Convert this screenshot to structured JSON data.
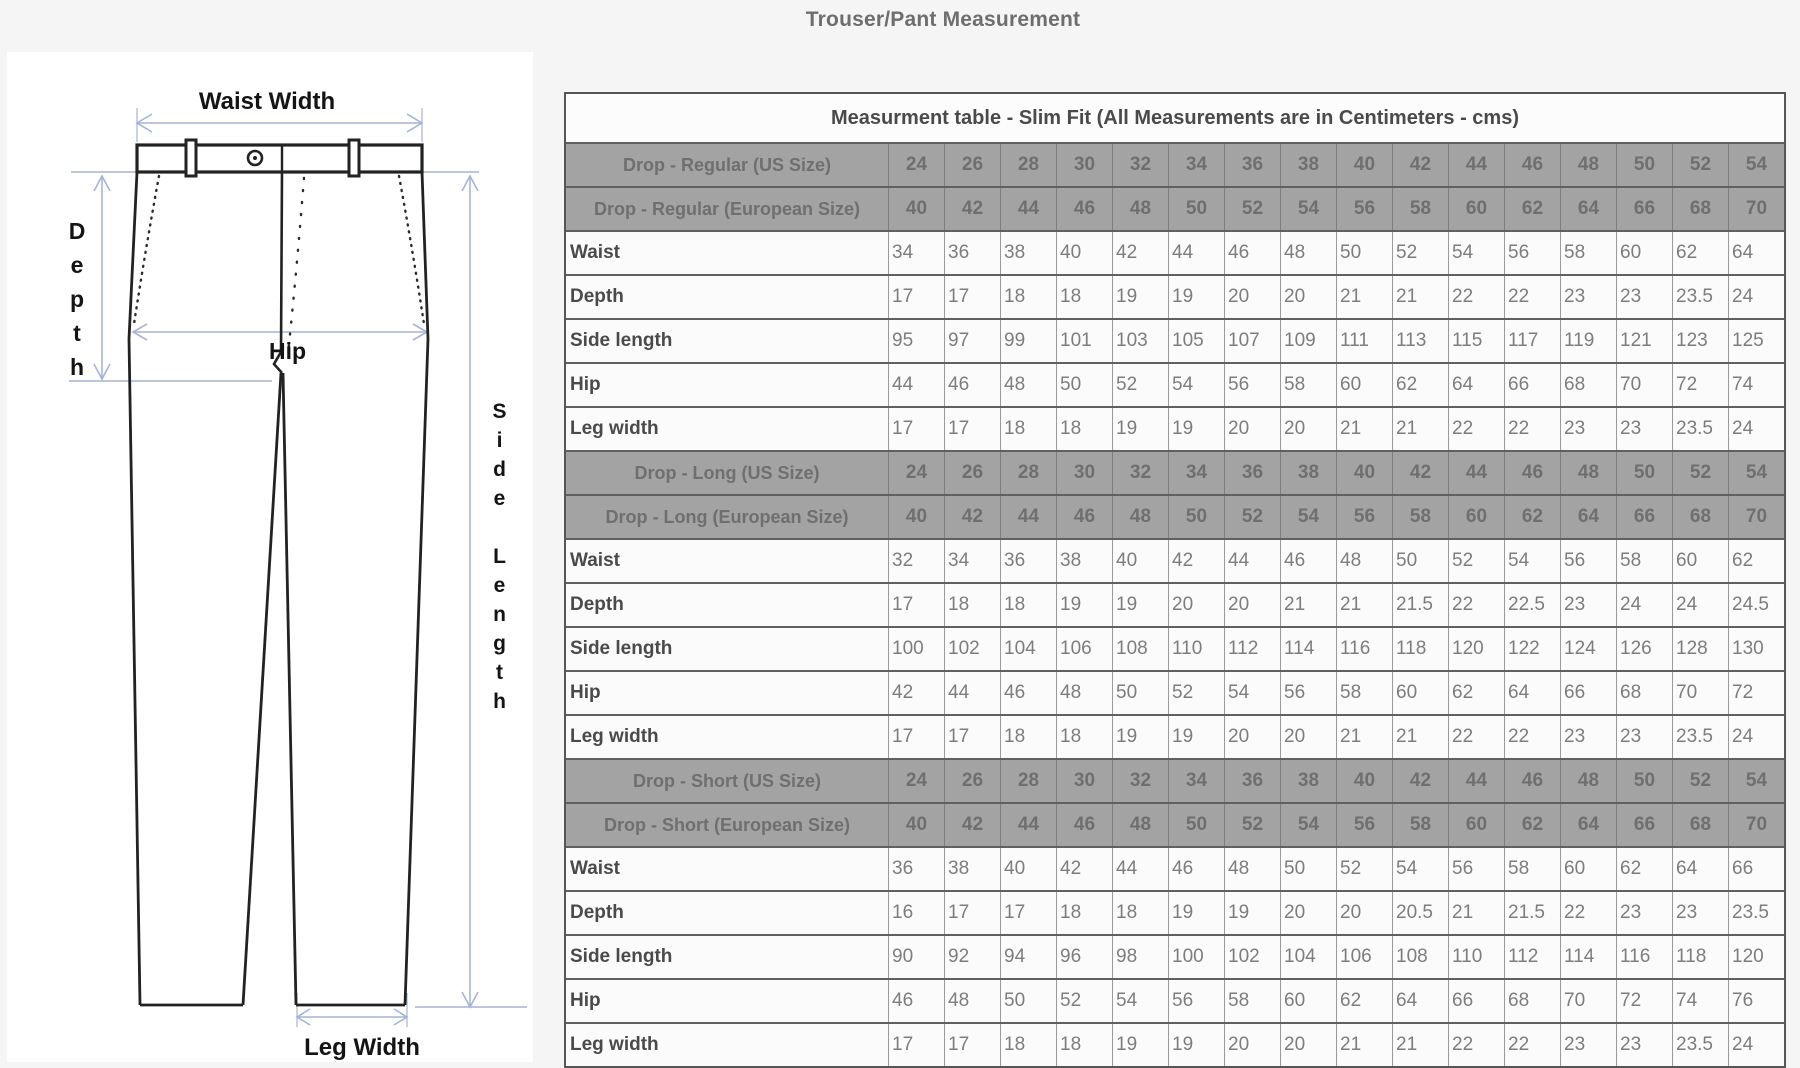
{
  "page_title": "Trouser/Pant Measurement",
  "diagram": {
    "labels": {
      "waist_width": "Waist Width",
      "depth": "Depth",
      "hip": "Hip",
      "side_length": "Side Length",
      "leg_width": "Leg Width"
    }
  },
  "colors": {
    "arrow_blue": "#a6b4d6",
    "outline_dark": "#222222",
    "header_bg": "#a3a3a3",
    "header_text": "#6f6f6f",
    "row_bg": "#fbfbfb",
    "label_text": "#4a4a4a",
    "value_text": "#7d7d7d"
  },
  "table": {
    "title": "Measurment table - Slim Fit (All Measurements are in Centimeters - cms)",
    "sections": [
      {
        "us_label": "Drop - Regular (US Size)",
        "eu_label": "Drop - Regular (European Size)",
        "us_sizes": [
          24,
          26,
          28,
          30,
          32,
          34,
          36,
          38,
          40,
          42,
          44,
          46,
          48,
          50,
          52,
          54
        ],
        "eu_sizes": [
          40,
          42,
          44,
          46,
          48,
          50,
          52,
          54,
          56,
          58,
          60,
          62,
          64,
          66,
          68,
          70
        ],
        "rows": [
          {
            "label": "Waist",
            "values": [
              34,
              36,
              38,
              40,
              42,
              44,
              46,
              48,
              50,
              52,
              54,
              56,
              58,
              60,
              62,
              64
            ]
          },
          {
            "label": "Depth",
            "values": [
              17,
              17,
              18,
              18,
              19,
              19,
              20,
              20,
              21,
              21,
              22,
              22,
              23,
              23,
              23.5,
              24
            ]
          },
          {
            "label": "Side length",
            "values": [
              95,
              97,
              99,
              101,
              103,
              105,
              107,
              109,
              111,
              113,
              115,
              117,
              119,
              121,
              123,
              125
            ]
          },
          {
            "label": "Hip",
            "values": [
              44,
              46,
              48,
              50,
              52,
              54,
              56,
              58,
              60,
              62,
              64,
              66,
              68,
              70,
              72,
              74
            ]
          },
          {
            "label": "Leg width",
            "values": [
              17,
              17,
              18,
              18,
              19,
              19,
              20,
              20,
              21,
              21,
              22,
              22,
              23,
              23,
              23.5,
              24
            ]
          }
        ]
      },
      {
        "us_label": "Drop - Long (US Size)",
        "eu_label": "Drop - Long (European Size)",
        "us_sizes": [
          24,
          26,
          28,
          30,
          32,
          34,
          36,
          38,
          40,
          42,
          44,
          46,
          48,
          50,
          52,
          54
        ],
        "eu_sizes": [
          40,
          42,
          44,
          46,
          48,
          50,
          52,
          54,
          56,
          58,
          60,
          62,
          64,
          66,
          68,
          70
        ],
        "rows": [
          {
            "label": "Waist",
            "values": [
              32,
              34,
              36,
              38,
              40,
              42,
              44,
              46,
              48,
              50,
              52,
              54,
              56,
              58,
              60,
              62
            ]
          },
          {
            "label": "Depth",
            "values": [
              17,
              18,
              18,
              19,
              19,
              20,
              20,
              21,
              21,
              21.5,
              22,
              22.5,
              23,
              24,
              24,
              24.5
            ]
          },
          {
            "label": "Side length",
            "values": [
              100,
              102,
              104,
              106,
              108,
              110,
              112,
              114,
              116,
              118,
              120,
              122,
              124,
              126,
              128,
              130
            ]
          },
          {
            "label": "Hip",
            "values": [
              42,
              44,
              46,
              48,
              50,
              52,
              54,
              56,
              58,
              60,
              62,
              64,
              66,
              68,
              70,
              72
            ]
          },
          {
            "label": "Leg width",
            "values": [
              17,
              17,
              18,
              18,
              19,
              19,
              20,
              20,
              21,
              21,
              22,
              22,
              23,
              23,
              23.5,
              24
            ]
          }
        ]
      },
      {
        "us_label": "Drop - Short (US Size)",
        "eu_label": "Drop - Short (European Size)",
        "us_sizes": [
          24,
          26,
          28,
          30,
          32,
          34,
          36,
          38,
          40,
          42,
          44,
          46,
          48,
          50,
          52,
          54
        ],
        "eu_sizes": [
          40,
          42,
          44,
          46,
          48,
          50,
          52,
          54,
          56,
          58,
          60,
          62,
          64,
          66,
          68,
          70
        ],
        "rows": [
          {
            "label": "Waist",
            "values": [
              36,
              38,
              40,
              42,
              44,
              46,
              48,
              50,
              52,
              54,
              56,
              58,
              60,
              62,
              64,
              66
            ]
          },
          {
            "label": "Depth",
            "values": [
              16,
              17,
              17,
              18,
              18,
              19,
              19,
              20,
              20,
              20.5,
              21,
              21.5,
              22,
              23,
              23,
              23.5
            ]
          },
          {
            "label": "Side length",
            "values": [
              90,
              92,
              94,
              96,
              98,
              100,
              102,
              104,
              106,
              108,
              110,
              112,
              114,
              116,
              118,
              120
            ]
          },
          {
            "label": "Hip",
            "values": [
              46,
              48,
              50,
              52,
              54,
              56,
              58,
              60,
              62,
              64,
              66,
              68,
              70,
              72,
              74,
              76
            ]
          },
          {
            "label": "Leg width",
            "values": [
              17,
              17,
              18,
              18,
              19,
              19,
              20,
              20,
              21,
              21,
              22,
              22,
              23,
              23,
              23.5,
              24
            ]
          }
        ]
      }
    ]
  }
}
